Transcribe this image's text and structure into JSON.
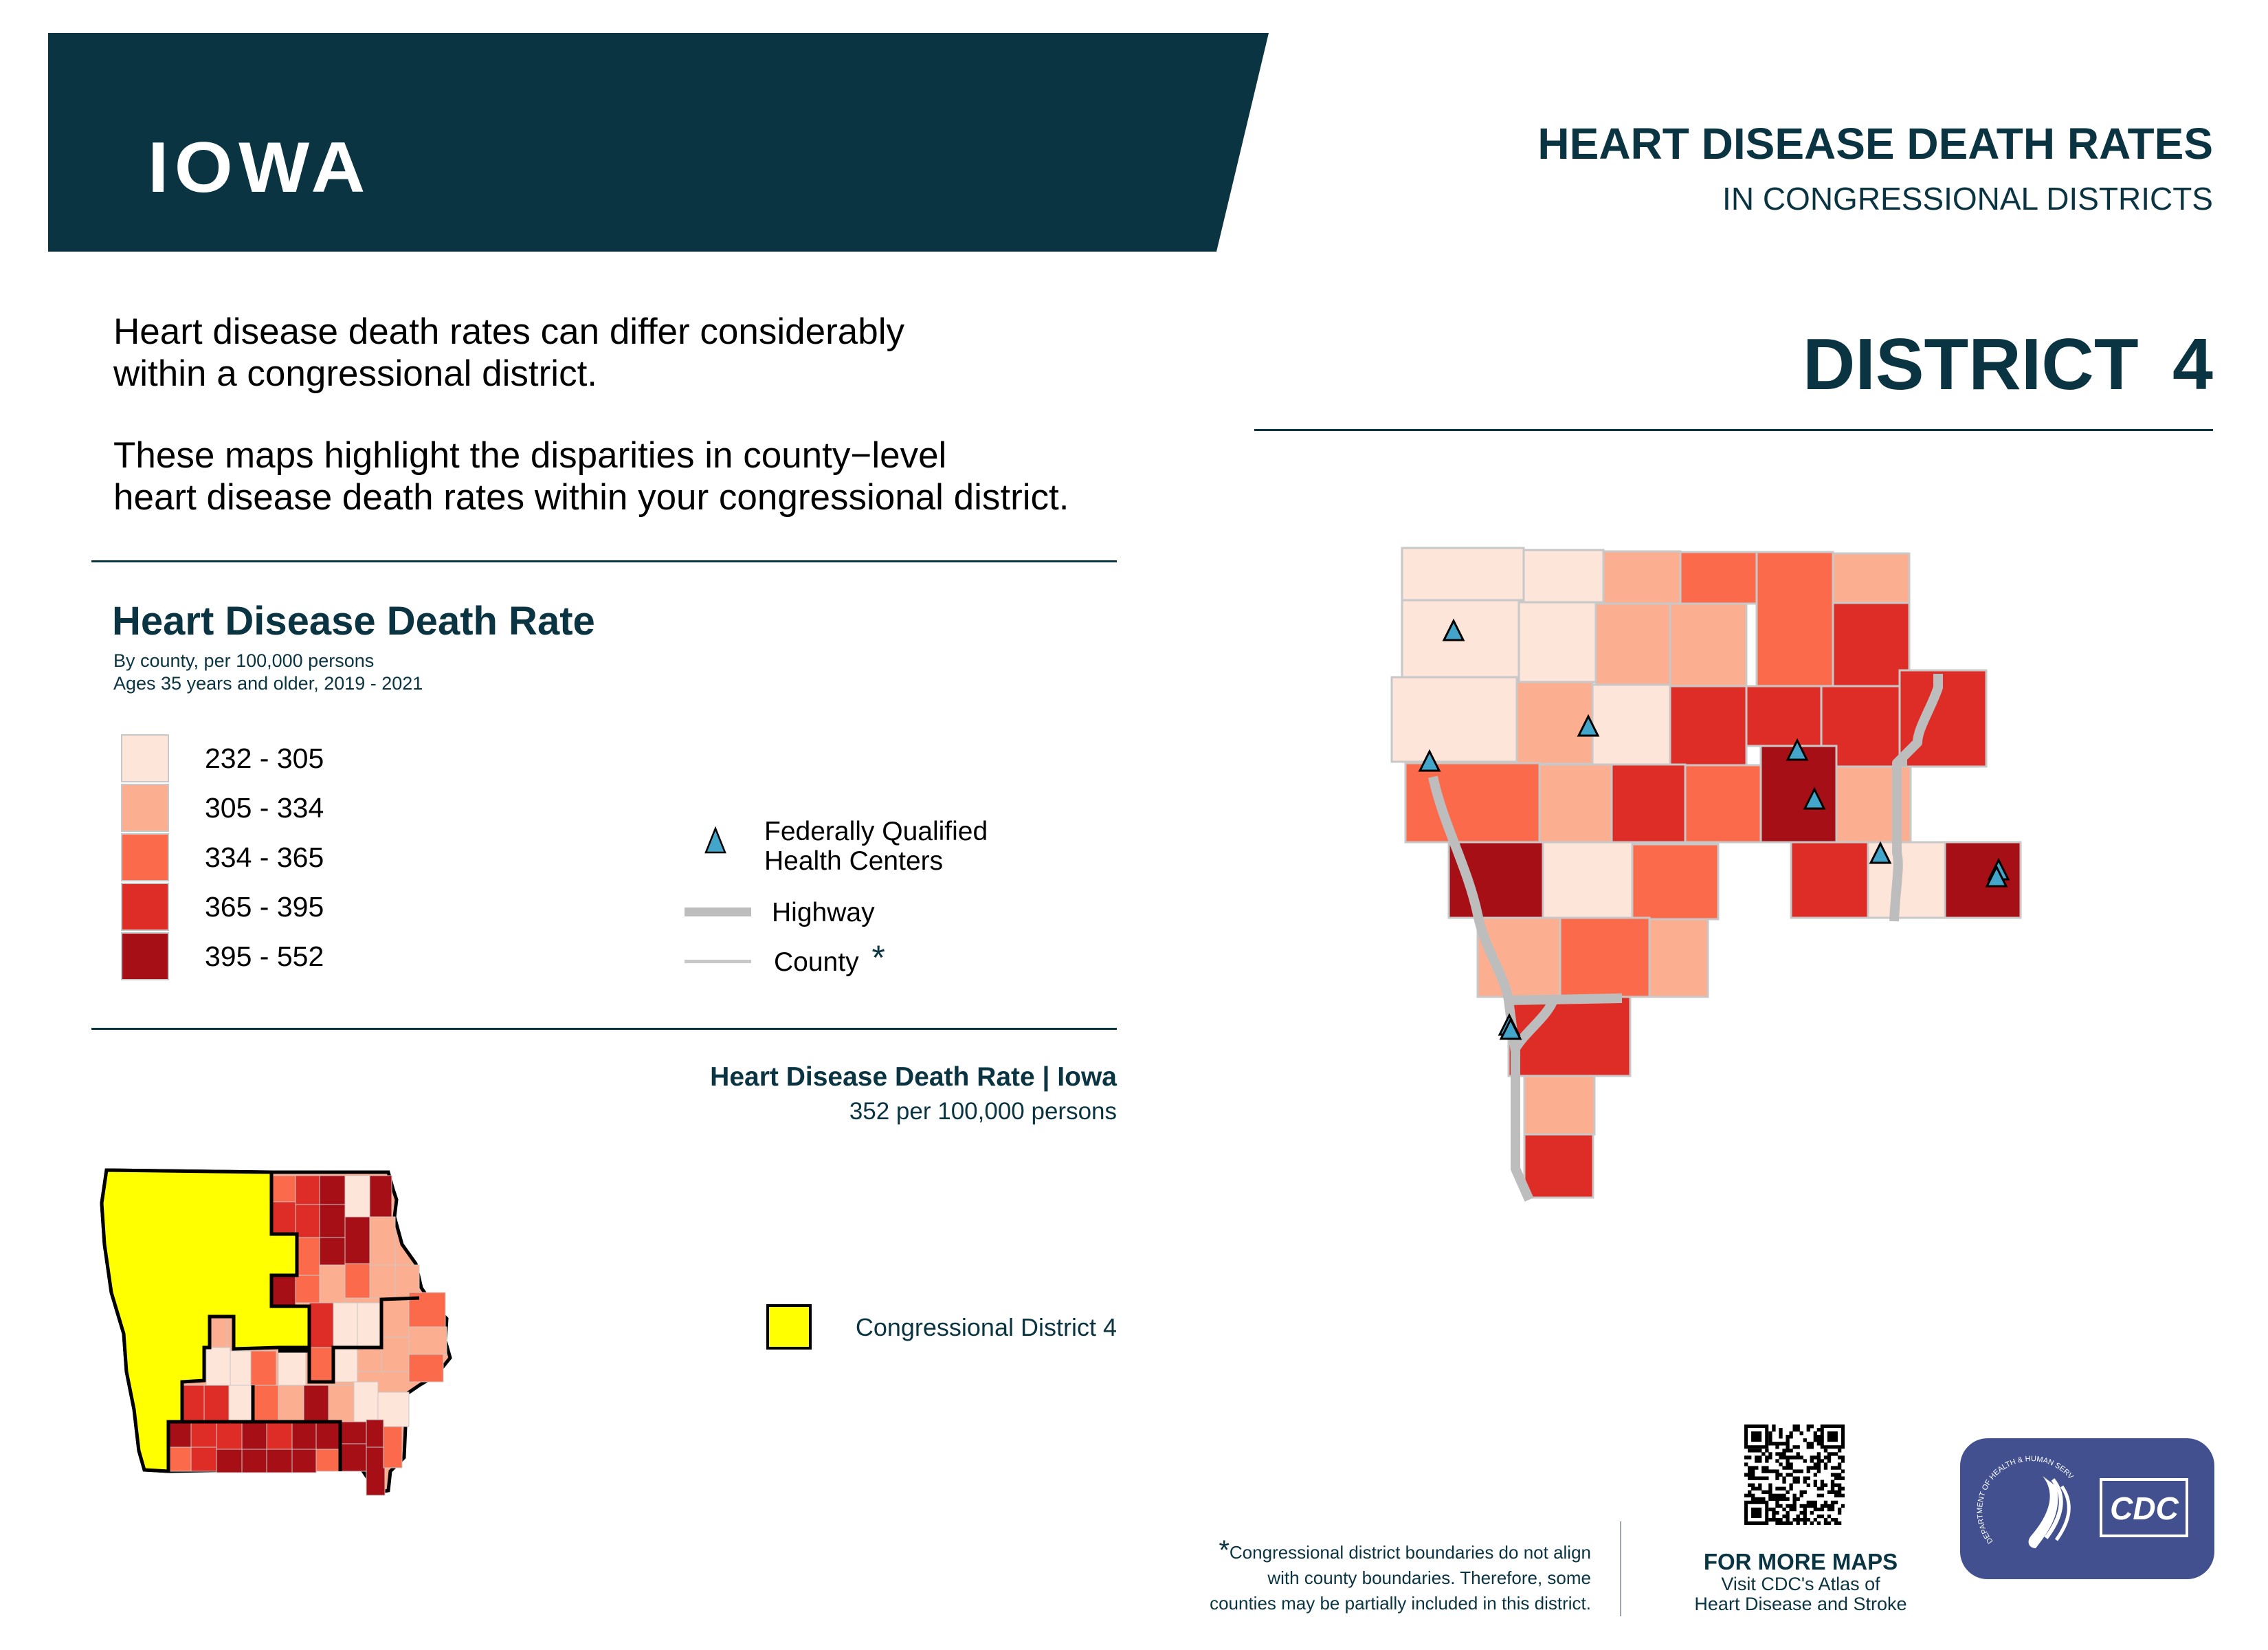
{
  "header": {
    "state_name": "IOWA",
    "title": "HEART DISEASE DEATH RATES",
    "subtitle": "IN CONGRESSIONAL DISTRICTS",
    "district_title": "DISTRICT  4"
  },
  "intro": {
    "paragraph1_line1": "Heart disease death rates can differ considerably",
    "paragraph1_line2": "within a congressional district.",
    "paragraph2_line1": "These maps highlight the disparities in county−level",
    "paragraph2_line2": "heart disease death rates within your congressional district."
  },
  "legend": {
    "title": "Heart Disease Death Rate",
    "subtitle_line1": "By county, per 100,000 persons",
    "subtitle_line2": "Ages 35 years and older, 2019 - 2021",
    "classes": [
      {
        "label": "232 - 305",
        "color": "#fee5d9"
      },
      {
        "label": "305 - 334",
        "color": "#fcae91"
      },
      {
        "label": "334 - 365",
        "color": "#fb6a4a"
      },
      {
        "label": "365 - 395",
        "color": "#de2d26"
      },
      {
        "label": "395 - 552",
        "color": "#a50f15"
      }
    ],
    "symbols": {
      "fqhc_line1": "Federally Qualified",
      "fqhc_line2": "Health Centers",
      "highway": "Highway",
      "county": "County",
      "county_asterisk": "*"
    },
    "fqhc_color": "#43a5c9",
    "highway_color": "#bdbdbd",
    "county_line_color": "#c8c8c8"
  },
  "state_summary": {
    "title": "Heart Disease Death Rate | Iowa",
    "value": "352 per 100,000 persons",
    "district_legend_label": "Congressional District 4",
    "district_highlight_color": "#ffff00"
  },
  "district_map": {
    "county_classes": [
      0,
      0,
      1,
      2,
      2,
      1,
      0,
      0,
      1,
      1,
      3,
      0,
      1,
      0,
      3,
      3,
      3,
      3,
      2,
      1,
      3,
      2,
      4,
      1,
      4,
      0,
      2,
      3,
      0,
      4,
      1,
      2,
      1,
      3,
      1,
      3
    ],
    "fqhc_count": 10
  },
  "state_map": {
    "county_classes": [
      2,
      3,
      4,
      0,
      4,
      3,
      3,
      4,
      4,
      3,
      2,
      4,
      1,
      4,
      2,
      1,
      2,
      1,
      1,
      3,
      0,
      0,
      1,
      2,
      1,
      1,
      2,
      1,
      0,
      0,
      2,
      0,
      2,
      0,
      1,
      3,
      3,
      0,
      2,
      1,
      4,
      1,
      0,
      0,
      4,
      3,
      3,
      4,
      3,
      4,
      4,
      4,
      4,
      2,
      3,
      4,
      4,
      4,
      4,
      2,
      4,
      4,
      2
    ]
  },
  "footer": {
    "footnote_asterisk": "*",
    "footnote_line1": "Congressional district boundaries do not align",
    "footnote_line2": "with county boundaries. Therefore, some",
    "footnote_line3": "counties may be partially included in this district.",
    "more_maps_title": "FOR MORE MAPS",
    "more_maps_line1": "Visit CDC's Atlas of",
    "more_maps_line2": "Heart Disease and Stroke",
    "logo_text": "CDC",
    "hhs_seal_text": "DEPARTMENT OF HEALTH & HUMAN SERVICES·USA"
  }
}
